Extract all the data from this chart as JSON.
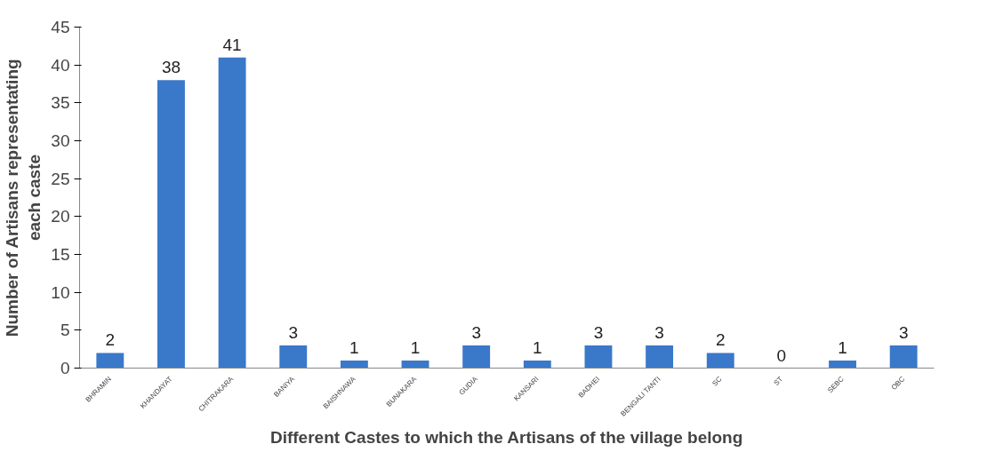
{
  "chart_data": {
    "type": "bar",
    "xlabel": "Different Castes to which the Artisans of the village belong",
    "ylabel": "Number of Artisans representating\neach caste",
    "categories": [
      "BHRAMIN",
      "KHANDAYAT",
      "CHITRAKARA",
      "BANIYA",
      "BAISHNAWA",
      "BUNAKARA",
      "GUDIA",
      "KANSARI",
      "BADHEI",
      "BENGALI TANTI",
      "SC",
      "ST",
      "SEBC",
      "OBC"
    ],
    "values": [
      2,
      38,
      41,
      3,
      1,
      1,
      3,
      1,
      3,
      3,
      2,
      0,
      1,
      3
    ],
    "color": "#3a78c9",
    "ylim": [
      0,
      45
    ],
    "yticks": [
      0,
      5,
      10,
      15,
      20,
      25,
      30,
      35,
      40,
      45
    ],
    "grid": false,
    "data_labels": true
  }
}
